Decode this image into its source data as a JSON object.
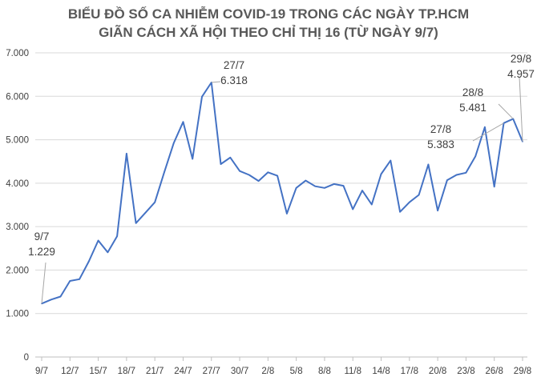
{
  "chart_data": {
    "type": "line",
    "title": [
      "BIỂU ĐỒ SỐ CA NHIỄM COVID-19 TRONG CÁC NGÀY TP.HCM",
      "GIÃN CÁCH XÃ HỘI THEO CHỈ THỊ 16 (TỪ NGÀY 9/7)"
    ],
    "xlabel": "",
    "ylabel": "",
    "ylim": [
      0,
      7000
    ],
    "grid": true,
    "series_color": "#4472C4",
    "x": [
      "9/7",
      "10/7",
      "11/7",
      "12/7",
      "13/7",
      "14/7",
      "15/7",
      "16/7",
      "17/7",
      "18/7",
      "19/7",
      "20/7",
      "21/7",
      "22/7",
      "23/7",
      "24/7",
      "25/7",
      "26/7",
      "27/7",
      "28/7",
      "29/7",
      "30/7",
      "31/7",
      "1/8",
      "2/8",
      "3/8",
      "4/8",
      "5/8",
      "6/8",
      "7/8",
      "8/8",
      "9/8",
      "10/8",
      "11/8",
      "12/8",
      "13/8",
      "14/8",
      "15/8",
      "16/8",
      "17/8",
      "18/8",
      "19/8",
      "20/8",
      "21/8",
      "22/8",
      "23/8",
      "24/8",
      "25/8",
      "26/8",
      "27/8",
      "28/8",
      "29/8"
    ],
    "values": [
      1229,
      1320,
      1390,
      1750,
      1790,
      2200,
      2680,
      2410,
      2780,
      4680,
      3080,
      3320,
      3560,
      4250,
      4920,
      5410,
      4560,
      5990,
      6318,
      4440,
      4590,
      4280,
      4190,
      4050,
      4250,
      4170,
      3300,
      3890,
      4060,
      3930,
      3890,
      3980,
      3940,
      3400,
      3830,
      3510,
      4210,
      4520,
      3340,
      3560,
      3730,
      4430,
      3370,
      4070,
      4190,
      4240,
      4620,
      5290,
      3920,
      5383,
      5481,
      4957
    ],
    "y_ticks": [
      "0",
      "1.000",
      "2.000",
      "3.000",
      "4.000",
      "5.000",
      "6.000",
      "7.000"
    ],
    "x_ticks": [
      "9/7",
      "12/7",
      "15/7",
      "18/7",
      "21/7",
      "24/7",
      "27/7",
      "30/7",
      "2/8",
      "5/8",
      "8/8",
      "11/8",
      "14/8",
      "17/8",
      "20/8",
      "23/8",
      "26/8",
      "29/8"
    ],
    "annotations": [
      {
        "index": 0,
        "date": "9/7",
        "value": "1.229"
      },
      {
        "index": 18,
        "date": "27/7",
        "value": "6.318"
      },
      {
        "index": 49,
        "date": "27/8",
        "value": "5.383"
      },
      {
        "index": 50,
        "date": "28/8",
        "value": "5.481"
      },
      {
        "index": 51,
        "date": "29/8",
        "value": "4.957"
      }
    ]
  }
}
